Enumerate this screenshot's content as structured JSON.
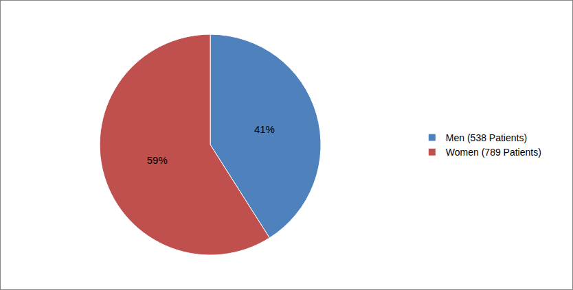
{
  "chart_data": {
    "type": "pie",
    "categories": [
      "Men (538 Patients)",
      "Women (789 Patients)"
    ],
    "values": [
      41,
      59
    ],
    "value_labels": [
      "41%",
      "59%"
    ],
    "colors": [
      "#4f81bd",
      "#c0504d"
    ],
    "data_labels": true,
    "legend": "right"
  }
}
